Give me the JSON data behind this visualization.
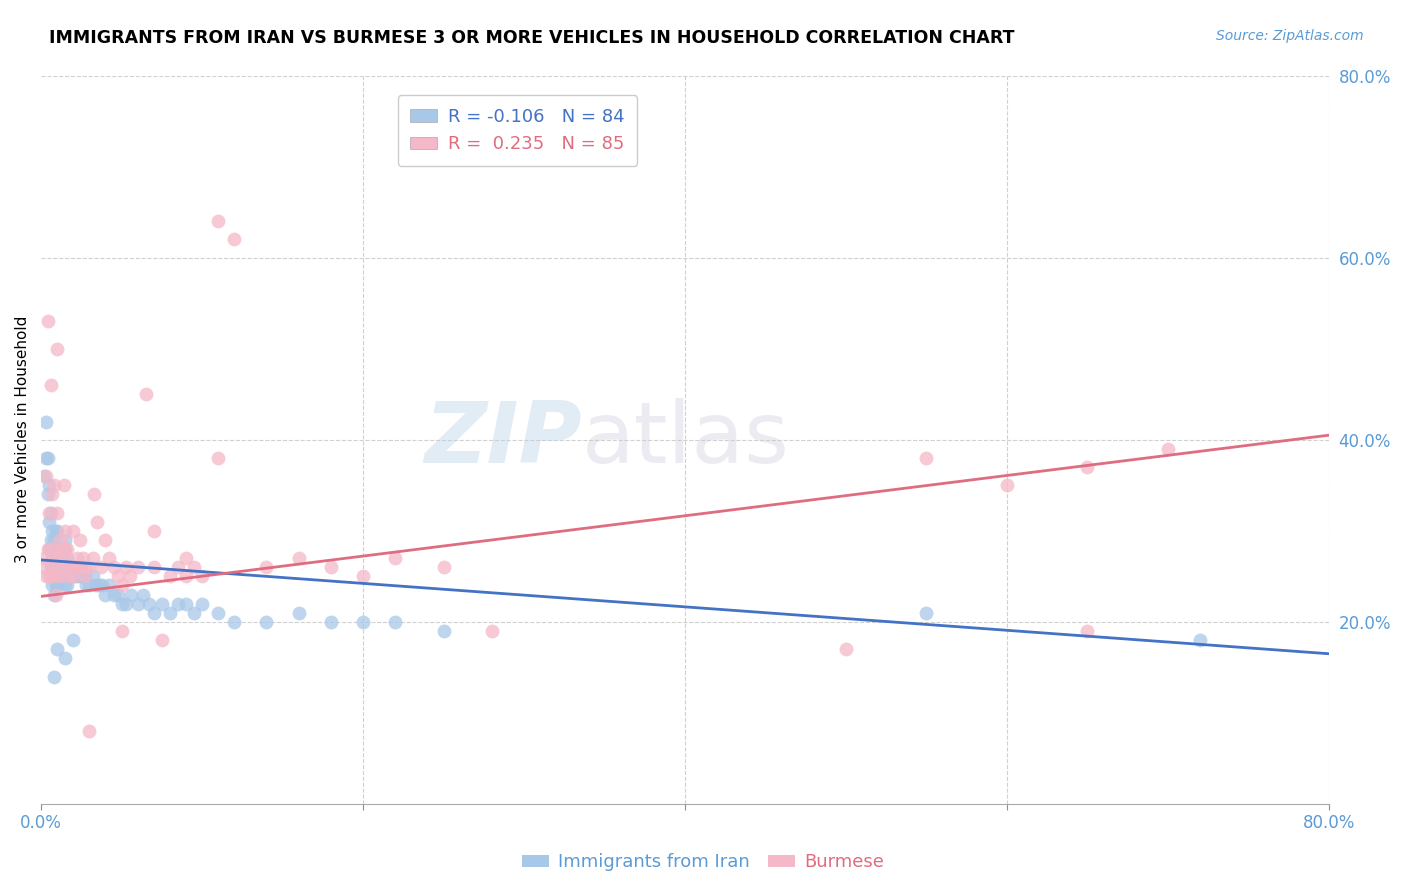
{
  "title": "IMMIGRANTS FROM IRAN VS BURMESE 3 OR MORE VEHICLES IN HOUSEHOLD CORRELATION CHART",
  "source": "Source: ZipAtlas.com",
  "ylabel": "3 or more Vehicles in Household",
  "x_min": 0.0,
  "x_max": 0.8,
  "y_min": 0.0,
  "y_max": 0.8,
  "iran_color": "#a8c8e8",
  "burmese_color": "#f4b8c8",
  "iran_line_color": "#4472c4",
  "burmese_line_color": "#e06c7f",
  "iran_R": -0.106,
  "iran_N": 84,
  "burmese_R": 0.235,
  "burmese_N": 85,
  "legend_label_iran": "Immigrants from Iran",
  "legend_label_burmese": "Burmese",
  "watermark": "ZIPatlas",
  "iran_line_x0": 0.0,
  "iran_line_y0": 0.268,
  "iran_line_x1": 0.8,
  "iran_line_y1": 0.165,
  "burmese_line_x0": 0.0,
  "burmese_line_y0": 0.228,
  "burmese_line_x1": 0.8,
  "burmese_line_y1": 0.405,
  "iran_x": [
    0.002,
    0.003,
    0.003,
    0.004,
    0.004,
    0.005,
    0.005,
    0.005,
    0.006,
    0.006,
    0.006,
    0.007,
    0.007,
    0.007,
    0.008,
    0.008,
    0.008,
    0.009,
    0.009,
    0.009,
    0.01,
    0.01,
    0.01,
    0.011,
    0.011,
    0.012,
    0.012,
    0.013,
    0.013,
    0.014,
    0.014,
    0.015,
    0.015,
    0.015,
    0.016,
    0.016,
    0.017,
    0.018,
    0.019,
    0.02,
    0.021,
    0.022,
    0.023,
    0.024,
    0.025,
    0.026,
    0.027,
    0.028,
    0.03,
    0.032,
    0.034,
    0.036,
    0.038,
    0.04,
    0.042,
    0.045,
    0.048,
    0.05,
    0.053,
    0.056,
    0.06,
    0.063,
    0.067,
    0.07,
    0.075,
    0.08,
    0.085,
    0.09,
    0.095,
    0.1,
    0.11,
    0.12,
    0.14,
    0.16,
    0.18,
    0.2,
    0.22,
    0.25,
    0.55,
    0.72,
    0.008,
    0.01,
    0.015,
    0.02
  ],
  "iran_y": [
    0.36,
    0.38,
    0.42,
    0.34,
    0.38,
    0.28,
    0.31,
    0.35,
    0.26,
    0.29,
    0.32,
    0.24,
    0.27,
    0.3,
    0.23,
    0.26,
    0.29,
    0.24,
    0.27,
    0.3,
    0.24,
    0.27,
    0.3,
    0.25,
    0.28,
    0.25,
    0.27,
    0.25,
    0.27,
    0.25,
    0.28,
    0.24,
    0.26,
    0.29,
    0.24,
    0.27,
    0.25,
    0.26,
    0.25,
    0.26,
    0.25,
    0.26,
    0.25,
    0.26,
    0.25,
    0.25,
    0.25,
    0.24,
    0.24,
    0.25,
    0.24,
    0.24,
    0.24,
    0.23,
    0.24,
    0.23,
    0.23,
    0.22,
    0.22,
    0.23,
    0.22,
    0.23,
    0.22,
    0.21,
    0.22,
    0.21,
    0.22,
    0.22,
    0.21,
    0.22,
    0.21,
    0.2,
    0.2,
    0.21,
    0.2,
    0.2,
    0.2,
    0.19,
    0.21,
    0.18,
    0.14,
    0.17,
    0.16,
    0.18
  ],
  "burmese_x": [
    0.001,
    0.002,
    0.003,
    0.003,
    0.004,
    0.004,
    0.005,
    0.005,
    0.006,
    0.006,
    0.007,
    0.007,
    0.008,
    0.008,
    0.009,
    0.009,
    0.01,
    0.01,
    0.011,
    0.012,
    0.012,
    0.013,
    0.013,
    0.014,
    0.014,
    0.015,
    0.015,
    0.016,
    0.017,
    0.018,
    0.019,
    0.02,
    0.021,
    0.022,
    0.023,
    0.024,
    0.025,
    0.026,
    0.027,
    0.028,
    0.03,
    0.032,
    0.033,
    0.035,
    0.037,
    0.04,
    0.042,
    0.045,
    0.048,
    0.05,
    0.053,
    0.055,
    0.06,
    0.065,
    0.07,
    0.075,
    0.08,
    0.085,
    0.09,
    0.095,
    0.1,
    0.11,
    0.12,
    0.14,
    0.16,
    0.18,
    0.2,
    0.22,
    0.25,
    0.28,
    0.5,
    0.55,
    0.6,
    0.65,
    0.7,
    0.65,
    0.006,
    0.01,
    0.015,
    0.02,
    0.03,
    0.05,
    0.07,
    0.09,
    0.11
  ],
  "burmese_y": [
    0.26,
    0.27,
    0.25,
    0.36,
    0.28,
    0.53,
    0.25,
    0.32,
    0.25,
    0.28,
    0.26,
    0.34,
    0.25,
    0.35,
    0.23,
    0.27,
    0.26,
    0.32,
    0.27,
    0.25,
    0.29,
    0.26,
    0.28,
    0.28,
    0.35,
    0.27,
    0.3,
    0.28,
    0.25,
    0.26,
    0.26,
    0.25,
    0.26,
    0.27,
    0.26,
    0.29,
    0.26,
    0.27,
    0.25,
    0.26,
    0.26,
    0.27,
    0.34,
    0.31,
    0.26,
    0.29,
    0.27,
    0.26,
    0.25,
    0.24,
    0.26,
    0.25,
    0.26,
    0.45,
    0.26,
    0.18,
    0.25,
    0.26,
    0.25,
    0.26,
    0.25,
    0.64,
    0.62,
    0.26,
    0.27,
    0.26,
    0.25,
    0.27,
    0.26,
    0.19,
    0.17,
    0.38,
    0.35,
    0.37,
    0.39,
    0.19,
    0.46,
    0.5,
    0.28,
    0.3,
    0.08,
    0.19,
    0.3,
    0.27,
    0.38
  ]
}
